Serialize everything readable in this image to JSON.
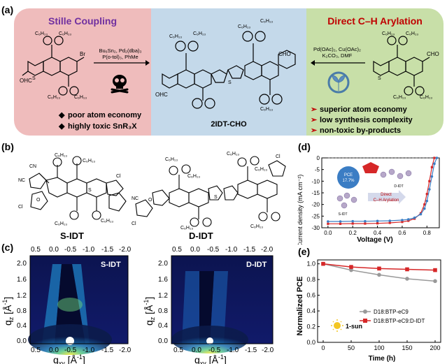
{
  "panel_labels": {
    "a": "(a)",
    "b": "(b)",
    "c": "(c)",
    "d": "(d)",
    "e": "(e)"
  },
  "panel_a": {
    "stille": {
      "title": "Stille Coupling",
      "conditions": [
        "Bu₆Sn₂, Pd₂(dba)₃",
        "P(o-tol)₃, PhMe"
      ],
      "drawbacks": [
        "poor atom economy",
        "highly toxic SnR₃X"
      ],
      "bullet_marker": "◆",
      "reactant_labels": {
        "r": "C₆H₁₃",
        "br": "Br",
        "ohc": "OHC",
        "s": "S"
      }
    },
    "product": {
      "name": "2IDT-CHO",
      "labels": {
        "r": "C₆H₁₃",
        "cho": "CHO",
        "ohc": "OHC",
        "s": "S"
      }
    },
    "direct": {
      "title": "Direct C–H Arylation",
      "conditions": [
        "Pd(OAc)₂, Cu(OAc)₂",
        "K₂CO₃, DMF"
      ],
      "advantages": [
        "superior atom economy",
        "low synthesis complexity",
        "non-toxic by-products"
      ],
      "bullet_marker": "➢",
      "reactant_labels": {
        "r": "C₆H₁₃",
        "cho": "CHO",
        "s": "S"
      }
    }
  },
  "panel_b": {
    "molecules": [
      {
        "name": "S-IDT",
        "substituent": "C₆H₁₃",
        "cn": "CN",
        "nc": "NC",
        "cl": "Cl",
        "o": "O",
        "s": "S"
      },
      {
        "name": "D-IDT",
        "substituent": "C₆H₁₃",
        "cn": "CN",
        "nc": "NC",
        "cl": "Cl",
        "o": "O",
        "s": "S"
      }
    ]
  },
  "panel_c": {
    "images": [
      {
        "label": "S-IDT"
      },
      {
        "label": "D-IDT"
      }
    ],
    "qxy_ticks": [
      "0.5",
      "0.0",
      "-0.5",
      "-1.0",
      "-1.5",
      "-2.0"
    ],
    "qxy_ticks_bottom": [
      "0.5",
      "0.0",
      "-0.5",
      "-1.0",
      "-1.5",
      "-2.0"
    ],
    "qz_ticks": [
      "2.0",
      "1.6",
      "1.2",
      "0.8",
      "0.4",
      "0.0"
    ],
    "xlabel": "q",
    "xlabel_sub": "xy",
    "xlabel_unit": " [Å",
    "xlabel_sup": "-1",
    "ylabel": "q",
    "ylabel_sub": "z",
    "ylabel_unit": " [Å",
    "ylabel_sup": "-1"
  },
  "chart_data": [
    {
      "type": "line",
      "panel": "d",
      "xlabel": "Voltage (V)",
      "ylabel": "Current density (mA cm⁻²)",
      "xlim": [
        -0.05,
        0.9
      ],
      "ylim": [
        -30,
        0
      ],
      "x_ticks": [
        "0.0",
        "0.2",
        "0.4",
        "0.6",
        "0.8"
      ],
      "y_ticks": [
        "0",
        "-5",
        "-10",
        "-15",
        "-20",
        "-25",
        "-30"
      ],
      "series": [
        {
          "color": "#d62728",
          "x": [
            0.0,
            0.1,
            0.2,
            0.3,
            0.4,
            0.5,
            0.6,
            0.65,
            0.7,
            0.75,
            0.78,
            0.8,
            0.82,
            0.84,
            0.86
          ],
          "y": [
            -28.3,
            -28.3,
            -28.2,
            -28.2,
            -28.1,
            -27.9,
            -27.5,
            -27.0,
            -26.1,
            -23.8,
            -20.0,
            -15.5,
            -10.0,
            -4.0,
            1.0
          ]
        },
        {
          "color": "#3b7dc4",
          "x": [
            0.0,
            0.1,
            0.2,
            0.3,
            0.4,
            0.5,
            0.6,
            0.65,
            0.7,
            0.75,
            0.78,
            0.8,
            0.82,
            0.84,
            0.86,
            0.88
          ],
          "y": [
            -27.3,
            -27.3,
            -27.2,
            -27.2,
            -27.1,
            -27.0,
            -26.7,
            -26.4,
            -25.7,
            -24.2,
            -21.8,
            -18.5,
            -13.5,
            -8.0,
            -2.5,
            1.0
          ]
        }
      ],
      "inset": {
        "pce_label": "PCE",
        "pce_value": "17.7%",
        "s_label": "S-IDT",
        "d_label": "D-IDT",
        "arrow_text": [
          "Direct",
          "C–H Arylation"
        ]
      }
    },
    {
      "type": "line",
      "panel": "e",
      "xlabel": "Time (h)",
      "ylabel": "Normalized PCE",
      "xlim": [
        -10,
        210
      ],
      "ylim": [
        0,
        1.05
      ],
      "x_ticks": [
        "0",
        "50",
        "100",
        "150",
        "200"
      ],
      "y_ticks": [
        "0.0",
        "0.2",
        "0.4",
        "0.6",
        "0.8",
        "1.0"
      ],
      "series": [
        {
          "name": "D18:BTP-eC9",
          "color": "#999999",
          "x": [
            0,
            50,
            100,
            150,
            200
          ],
          "y": [
            1.0,
            0.92,
            0.86,
            0.81,
            0.78
          ]
        },
        {
          "name": "D18:BTP-eC9:D-IDT",
          "color": "#d62728",
          "x": [
            0,
            50,
            100,
            150,
            200
          ],
          "y": [
            1.0,
            0.96,
            0.94,
            0.93,
            0.92
          ]
        }
      ],
      "annotation": "1-sun",
      "legend": "bottom-right"
    }
  ]
}
